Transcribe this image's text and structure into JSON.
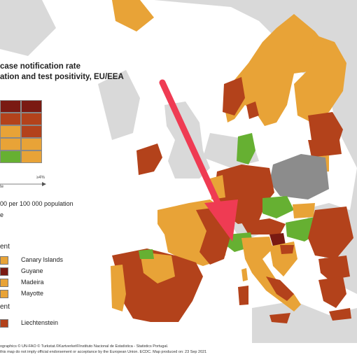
{
  "map": {
    "title_line1": "case notification rate",
    "title_line2": "ation and test positivity, EU/EEA",
    "colors": {
      "sea": "#ffffff",
      "non_eu": "#d9d9d9",
      "dark_red": "#7a1a12",
      "red": "#b3421b",
      "orange": "#e8a337",
      "green": "#66b032",
      "grey": "#8c8c8c",
      "arrow": "#ef3b53"
    },
    "matrix_colors": [
      [
        "#7a1a12",
        "#7a1a12"
      ],
      [
        "#b3421b",
        "#b3421b"
      ],
      [
        "#e8a337",
        "#b3421b"
      ],
      [
        "#e8a337",
        "#e8a337"
      ],
      [
        "#66b032",
        "#e8a337"
      ]
    ],
    "positivity_tick": "≥4%",
    "positivity_axis": "te",
    "rate_line": "00 per 100 000 population",
    "rate_line2": "e",
    "section1": "ent",
    "section2": "ent",
    "outermost": [
      {
        "label": "Canary Islands",
        "color": "#e8a337"
      },
      {
        "label": "Guyane",
        "color": "#7a1a12"
      },
      {
        "label": "Madeira",
        "color": "#e8a337"
      },
      {
        "label": "Mayotte",
        "color": "#e8a337"
      }
    ],
    "small": [
      {
        "label": "Liechtenstein",
        "color": "#b3421b"
      }
    ],
    "footer1": "ographics © UN-FAO © Turkstat.©Kartverket©Instituto Nacional de Estatística - Statistics Portugal.",
    "footer2": "this map do not imply official endorsement or acceptance by the European Union. ECDC. Map produced on: 23 Sep 2021"
  }
}
